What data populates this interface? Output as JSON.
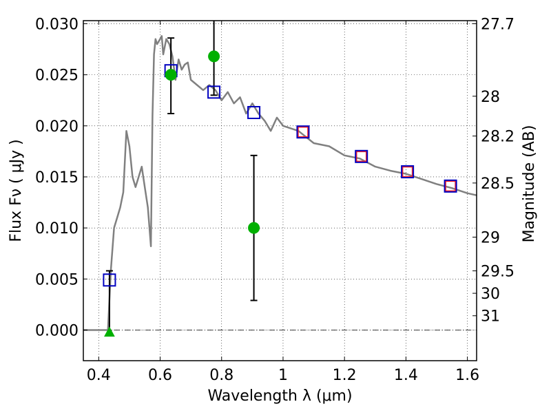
{
  "chart_data": {
    "type": "scatter",
    "xlabel": "Wavelength  λ (μm)",
    "ylabel": "Flux  Fν  ( μJy )",
    "ylabel_right": "Magnitude (AB)",
    "xlim": [
      0.35,
      1.63
    ],
    "ylim": [
      -0.003,
      0.0303
    ],
    "grid": true,
    "x_ticks": [
      0.4,
      0.6,
      0.8,
      1.0,
      1.2,
      1.4,
      1.6
    ],
    "x_tick_labels": [
      "0.4",
      "0.6",
      "0.8",
      "1",
      "1.2",
      "1.4",
      "1.6"
    ],
    "y_ticks": [
      0.0,
      0.005,
      0.01,
      0.015,
      0.02,
      0.025,
      0.03
    ],
    "y_tick_labels": [
      "0.000",
      "0.005",
      "0.010",
      "0.015",
      "0.020",
      "0.025",
      "0.030"
    ],
    "mag_ticks": [
      {
        "label": "27.7",
        "flux": 0.03
      },
      {
        "label": "28",
        "flux": 0.0229
      },
      {
        "label": "28.2",
        "flux": 0.019
      },
      {
        "label": "28.5",
        "flux": 0.0144
      },
      {
        "label": "29",
        "flux": 0.0091
      },
      {
        "label": "29.5",
        "flux": 0.0058
      },
      {
        "label": "30",
        "flux": 0.0036
      },
      {
        "label": "31",
        "flux": 0.0014
      }
    ],
    "model_spectrum": {
      "color": "#808080",
      "x": [
        0.35,
        0.4,
        0.43,
        0.44,
        0.45,
        0.46,
        0.47,
        0.48,
        0.49,
        0.5,
        0.51,
        0.52,
        0.53,
        0.54,
        0.55,
        0.56,
        0.57,
        0.575,
        0.58,
        0.585,
        0.59,
        0.6,
        0.605,
        0.61,
        0.62,
        0.63,
        0.64,
        0.65,
        0.66,
        0.67,
        0.68,
        0.69,
        0.7,
        0.72,
        0.74,
        0.76,
        0.78,
        0.8,
        0.82,
        0.84,
        0.86,
        0.88,
        0.9,
        0.92,
        0.94,
        0.96,
        0.98,
        1.0,
        1.05,
        1.1,
        1.15,
        1.2,
        1.25,
        1.3,
        1.35,
        1.4,
        1.45,
        1.5,
        1.55,
        1.6,
        1.63
      ],
      "y": [
        0.0,
        0.0,
        0.0,
        0.006,
        0.01,
        0.011,
        0.012,
        0.0135,
        0.0195,
        0.018,
        0.015,
        0.014,
        0.015,
        0.016,
        0.014,
        0.012,
        0.0082,
        0.021,
        0.027,
        0.0285,
        0.028,
        0.0285,
        0.0288,
        0.027,
        0.0285,
        0.028,
        0.0268,
        0.0245,
        0.0265,
        0.0255,
        0.026,
        0.0262,
        0.0245,
        0.024,
        0.0235,
        0.024,
        0.0235,
        0.0225,
        0.0233,
        0.0222,
        0.0228,
        0.0212,
        0.0222,
        0.0212,
        0.0205,
        0.0195,
        0.0208,
        0.02,
        0.0195,
        0.0183,
        0.018,
        0.0171,
        0.0168,
        0.016,
        0.0156,
        0.0153,
        0.0148,
        0.0143,
        0.0139,
        0.0134,
        0.0132
      ]
    },
    "model_points": {
      "color": "#0000c0",
      "x": [
        0.435,
        0.635,
        0.775,
        0.905,
        1.065,
        1.255,
        1.405,
        1.545
      ],
      "y": [
        0.0049,
        0.0254,
        0.0233,
        0.0213,
        0.0194,
        0.017,
        0.0155,
        0.0141
      ]
    },
    "observed_points": {
      "color": "#ff2020",
      "x": [
        1.065,
        1.255,
        1.405,
        1.545
      ],
      "y": [
        0.0194,
        0.017,
        0.0155,
        0.0141
      ]
    },
    "measured_points": {
      "color": "#00b000",
      "x": [
        0.635,
        0.775,
        0.905
      ],
      "y": [
        0.025,
        0.0268,
        0.01
      ],
      "err_low": [
        0.0212,
        0.023,
        0.0029
      ],
      "err_high": [
        0.0286,
        0.0306,
        0.0171
      ]
    },
    "upper_limit": {
      "color": "#00b000",
      "x": 0.435,
      "y": -0.0002,
      "err_low": 0.0,
      "err_high": 0.0058
    }
  }
}
